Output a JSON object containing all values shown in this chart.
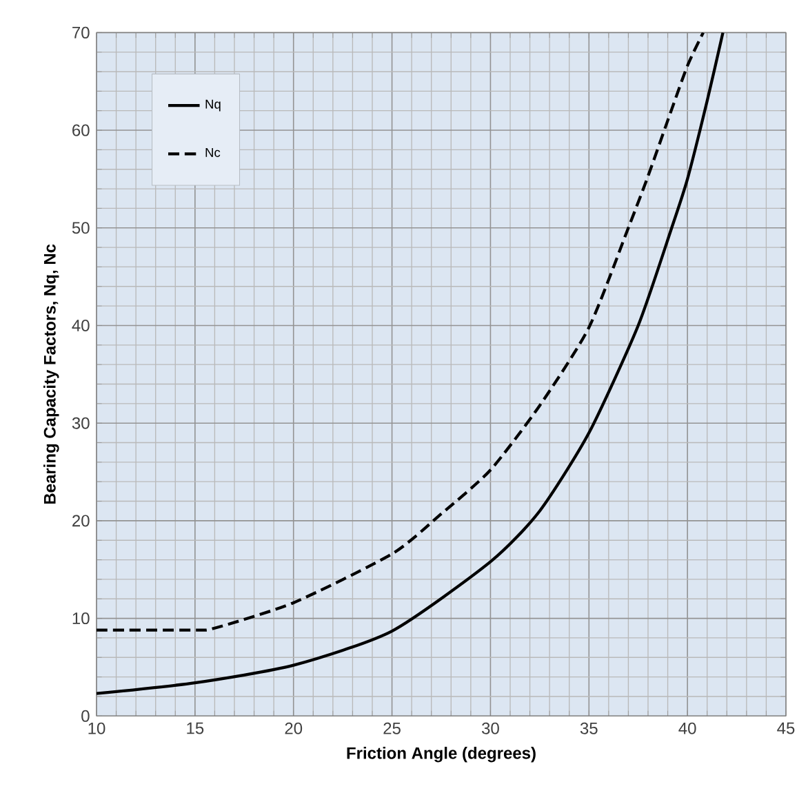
{
  "chart_data": {
    "type": "line",
    "xlabel": "Friction Angle (degrees)",
    "ylabel": "Bearing Capacity Factors, Nq, Nc",
    "xlim": [
      10,
      45
    ],
    "ylim": [
      0,
      70
    ],
    "xticks": [
      10,
      15,
      20,
      25,
      30,
      35,
      40,
      45
    ],
    "yticks": [
      0,
      10,
      20,
      30,
      40,
      50,
      60,
      70
    ],
    "grid": true,
    "legend": "top left",
    "marker": "none",
    "series": [
      {
        "name": "Nq",
        "color": "#000000",
        "line_style": "solid",
        "x": [
          10,
          15,
          20,
          25,
          30,
          32.5,
          35,
          37.5,
          39.2,
          40,
          41,
          41.8
        ],
        "values": [
          2.3,
          3.4,
          5.2,
          8.7,
          15.8,
          21,
          29,
          40,
          50,
          55,
          63,
          70
        ]
      },
      {
        "name": "Nc",
        "color": "#000000",
        "line_style": "dashed",
        "x": [
          10,
          15,
          16,
          20,
          25,
          27.5,
          30,
          32.5,
          35,
          37,
          38,
          39,
          40,
          40.8
        ],
        "values": [
          8.8,
          8.8,
          9,
          11.6,
          16.6,
          20.7,
          25.2,
          31.8,
          39.8,
          50,
          55.3,
          61,
          66.6,
          70
        ]
      }
    ]
  }
}
